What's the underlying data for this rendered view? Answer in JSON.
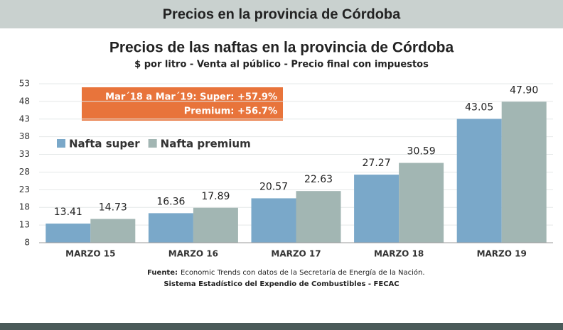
{
  "header": {
    "title": "Precios en la provincia de Córdoba"
  },
  "chart_data": {
    "type": "bar",
    "title": "Precios de las naftas en la provincia de Córdoba",
    "subtitle": "$ por litro - Venta al público - Precio final con impuestos",
    "categories": [
      "MARZO 15",
      "MARZO 16",
      "MARZO 17",
      "MARZO 18",
      "MARZO 19"
    ],
    "series": [
      {
        "name": "Nafta super",
        "color": "#7aa8c9",
        "values": [
          13.41,
          16.36,
          20.57,
          27.27,
          43.05
        ],
        "value_labels": [
          "13.41",
          "16.36",
          "20.57",
          "27.27",
          "43.05"
        ]
      },
      {
        "name": "Nafta premium",
        "color": "#a2b6b3",
        "values": [
          14.73,
          17.89,
          22.63,
          30.59,
          47.9
        ],
        "value_labels": [
          "14.73",
          "17.89",
          "22.63",
          "30.59",
          "47.90"
        ]
      }
    ],
    "ylim": [
      8,
      53
    ],
    "yticks": [
      8,
      13,
      18,
      23,
      28,
      33,
      38,
      43,
      48,
      53
    ],
    "grid": true,
    "annotations": [
      "Mar´18 a Mar´19: Super: +57.9%",
      "Premium: +56.7%"
    ],
    "source": {
      "label": "Fuente:",
      "text": "Economic Trends con datos de la Secretaría de Energía de la Nación.",
      "line2": "Sistema Estadístico del Expendio de Combustibles - FECAC"
    }
  }
}
